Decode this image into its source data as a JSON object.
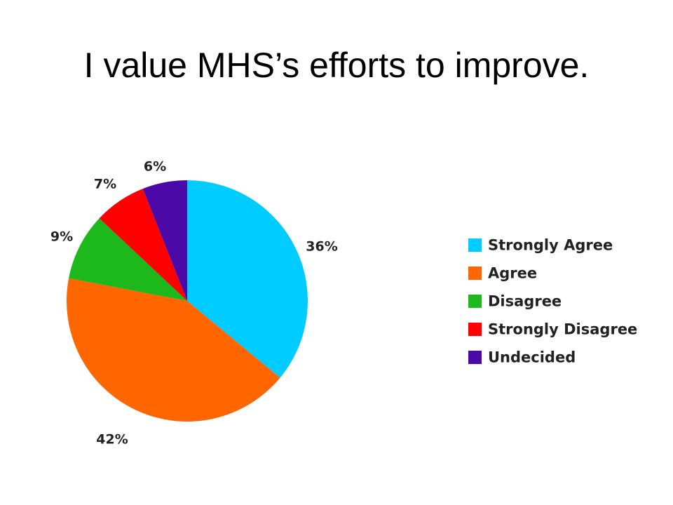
{
  "slide": {
    "title": "I value MHS’s efforts to improve."
  },
  "chart_data": {
    "type": "pie",
    "title": "",
    "start_angle": "12 o'clock",
    "direction": "clockwise",
    "legend_position": "right",
    "slices": [
      {
        "label": "Strongly Agree",
        "value": 36,
        "data_label": "36%",
        "color": "#00CCFF"
      },
      {
        "label": "Agree",
        "value": 42,
        "data_label": "42%",
        "color": "#FF6600"
      },
      {
        "label": "Disagree",
        "value": 9,
        "data_label": "9%",
        "color": "#1CB81C"
      },
      {
        "label": "Strongly Disagree",
        "value": 7,
        "data_label": "7%",
        "color": "#FF0000"
      },
      {
        "label": "Undecided",
        "value": 6,
        "data_label": "6%",
        "color": "#4B0AA8"
      }
    ]
  }
}
